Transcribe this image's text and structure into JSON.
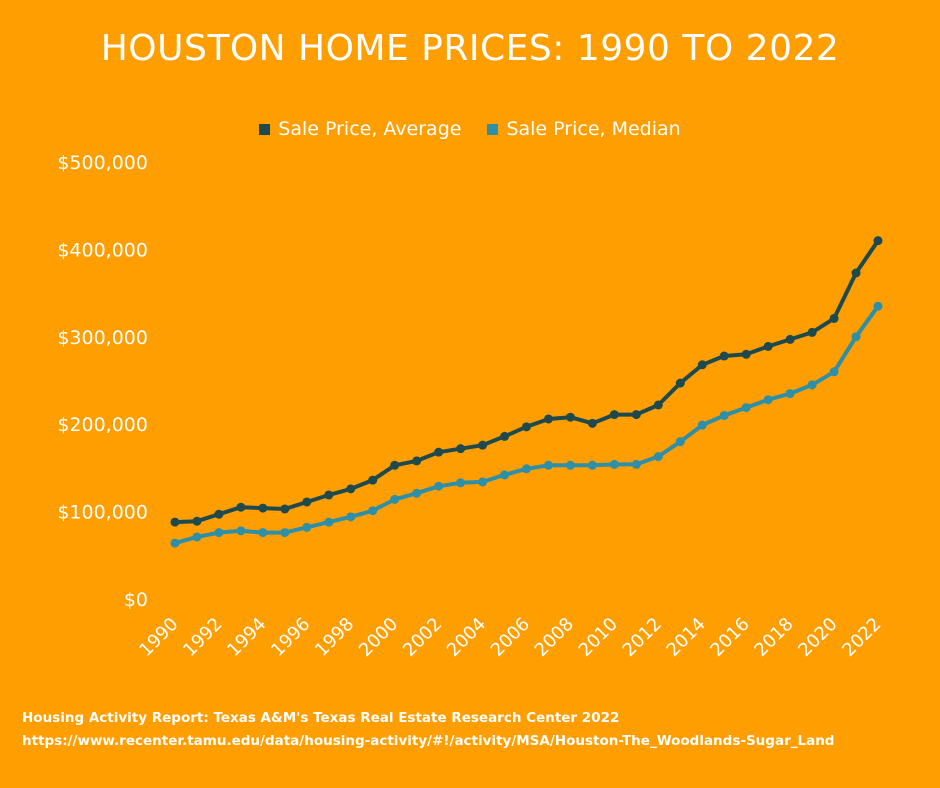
{
  "chart_data": {
    "type": "line",
    "title": "HOUSTON HOME PRICES: 1990 TO 2022",
    "xlabel": "",
    "ylabel": "",
    "ylim": [
      0,
      500000
    ],
    "y_ticks": [
      "$0",
      "$100,000",
      "$200,000",
      "$300,000",
      "$400,000",
      "$500,000"
    ],
    "x_ticks": [
      "1990",
      "1992",
      "1994",
      "1996",
      "1998",
      "2000",
      "2002",
      "2004",
      "2006",
      "2008",
      "2010",
      "2012",
      "2014",
      "2016",
      "2018",
      "2020",
      "2022"
    ],
    "x": [
      1990,
      1991,
      1992,
      1993,
      1994,
      1995,
      1996,
      1997,
      1998,
      1999,
      2000,
      2001,
      2002,
      2003,
      2004,
      2005,
      2006,
      2007,
      2008,
      2009,
      2010,
      2011,
      2012,
      2013,
      2014,
      2015,
      2016,
      2017,
      2018,
      2019,
      2020,
      2021,
      2022
    ],
    "legend_position": "top-center",
    "grid": false,
    "series": [
      {
        "name": "Sale Price, Average",
        "color": "#1E4A4D",
        "values": [
          88000,
          89000,
          97000,
          105000,
          104000,
          103000,
          111000,
          119000,
          126000,
          136000,
          153000,
          158000,
          168000,
          172000,
          176000,
          186000,
          197000,
          206000,
          208000,
          201000,
          211000,
          211000,
          222000,
          247000,
          268000,
          278000,
          280000,
          289000,
          297000,
          305000,
          321000,
          373000,
          410000
        ]
      },
      {
        "name": "Sale Price, Median",
        "color": "#2E8FA8",
        "values": [
          64000,
          71000,
          76000,
          78000,
          76000,
          76000,
          82000,
          88000,
          94000,
          101000,
          114000,
          121000,
          129000,
          133000,
          134000,
          142000,
          149000,
          153000,
          153000,
          153000,
          154000,
          154000,
          163000,
          180000,
          199000,
          210000,
          219000,
          228000,
          235000,
          245000,
          260000,
          300000,
          335000
        ]
      }
    ]
  },
  "footer": {
    "source_line": "Housing Activity Report: Texas A&M's Texas Real Estate Research Center 2022",
    "url_line": "https://www.recenter.tamu.edu/data/housing-activity/#!/activity/MSA/Houston-The_Woodlands-Sugar_Land"
  }
}
